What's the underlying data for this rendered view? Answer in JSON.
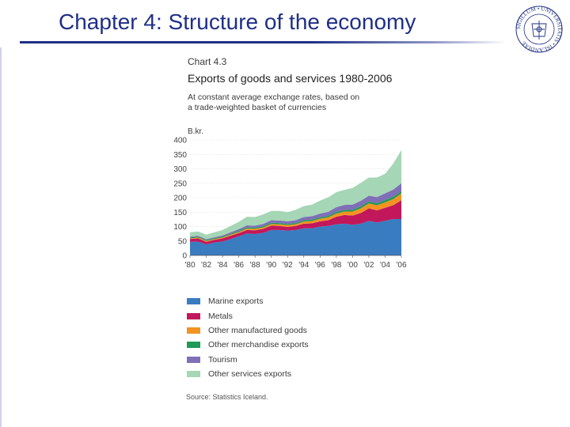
{
  "slide": {
    "title": "Chapter 4: Structure of the economy"
  },
  "seal": {
    "text": "SIGILLUM • UNIVERSITATIS • ISLANDIAE",
    "color": "#1f2f86"
  },
  "chart_data": {
    "type": "area",
    "stacked": true,
    "number": "Chart 4.3",
    "title": "Exports of goods and services 1980-2006",
    "subtitle_lines": [
      "At constant average exchange rates, based on",
      "a trade-weighted basket of currencies"
    ],
    "ylabel": "B.kr.",
    "ylim": [
      0,
      400
    ],
    "yticks": [
      "0",
      "50",
      "100",
      "150",
      "200",
      "250",
      "300",
      "350",
      "400"
    ],
    "grid": true,
    "xticks": [
      "'80",
      "'82",
      "'84",
      "'86",
      "'88",
      "'90",
      "'92",
      "'94",
      "'96",
      "'98",
      "'00",
      "'02",
      "'04",
      "'06"
    ],
    "x": [
      1980,
      1981,
      1982,
      1983,
      1984,
      1985,
      1986,
      1987,
      1988,
      1989,
      1990,
      1991,
      1992,
      1993,
      1994,
      1995,
      1996,
      1997,
      1998,
      1999,
      2000,
      2001,
      2002,
      2003,
      2004,
      2005,
      2006
    ],
    "series": [
      {
        "name": "Marine exports",
        "color": "#3a7cc0",
        "values": [
          47,
          48,
          38,
          45,
          48,
          57,
          66,
          76,
          74,
          78,
          88,
          88,
          86,
          88,
          94,
          94,
          100,
          102,
          108,
          110,
          106,
          110,
          120,
          114,
          120,
          126,
          126
        ]
      },
      {
        "name": "Metals",
        "color": "#c2185b",
        "values": [
          10,
          11,
          9,
          9,
          11,
          11,
          11,
          12,
          13,
          14,
          15,
          14,
          13,
          14,
          16,
          17,
          18,
          20,
          26,
          30,
          32,
          37,
          43,
          42,
          45,
          48,
          65
        ]
      },
      {
        "name": "Other manufactured goods",
        "color": "#f39322",
        "values": [
          2,
          3,
          3,
          3,
          3,
          4,
          4,
          5,
          5,
          5,
          6,
          6,
          6,
          6,
          7,
          8,
          9,
          10,
          11,
          12,
          14,
          16,
          17,
          18,
          19,
          21,
          24
        ]
      },
      {
        "name": "Other merchandise exports",
        "color": "#1f9a57",
        "values": [
          3,
          3,
          3,
          3,
          3,
          3,
          4,
          4,
          4,
          4,
          4,
          4,
          4,
          4,
          5,
          5,
          5,
          5,
          6,
          6,
          6,
          7,
          7,
          7,
          8,
          8,
          8
        ]
      },
      {
        "name": "Tourism",
        "color": "#7f6fb7",
        "values": [
          3,
          3,
          3,
          3,
          4,
          5,
          6,
          7,
          7,
          8,
          9,
          9,
          9,
          10,
          11,
          12,
          13,
          14,
          16,
          17,
          18,
          19,
          20,
          21,
          23,
          25,
          27
        ]
      },
      {
        "name": "Other services exports",
        "color": "#a5d6b5",
        "values": [
          15,
          15,
          16,
          17,
          19,
          22,
          25,
          30,
          30,
          33,
          32,
          33,
          32,
          36,
          38,
          40,
          45,
          50,
          52,
          52,
          58,
          62,
          63,
          68,
          68,
          90,
          115
        ]
      }
    ],
    "source": "Source: Statistics Iceland."
  }
}
